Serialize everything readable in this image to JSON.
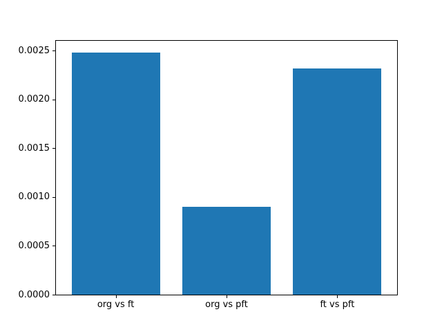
{
  "chart_data": {
    "type": "bar",
    "title": "",
    "xlabel": "",
    "ylabel": "",
    "categories": [
      "org vs ft",
      "org vs pft",
      "ft vs pft"
    ],
    "values": [
      0.00248,
      0.0009,
      0.00232
    ],
    "ylim": [
      0,
      0.0026
    ],
    "yticks": [
      0.0,
      0.0005,
      0.001,
      0.0015,
      0.002,
      0.0025
    ],
    "ytick_labels": [
      "0.0000",
      "0.0005",
      "0.0010",
      "0.0015",
      "0.0020",
      "0.0025"
    ],
    "bar_color": "#1f77b4",
    "axis_color": "#000000",
    "background_color": "#ffffff",
    "grid": false,
    "legend": null
  }
}
